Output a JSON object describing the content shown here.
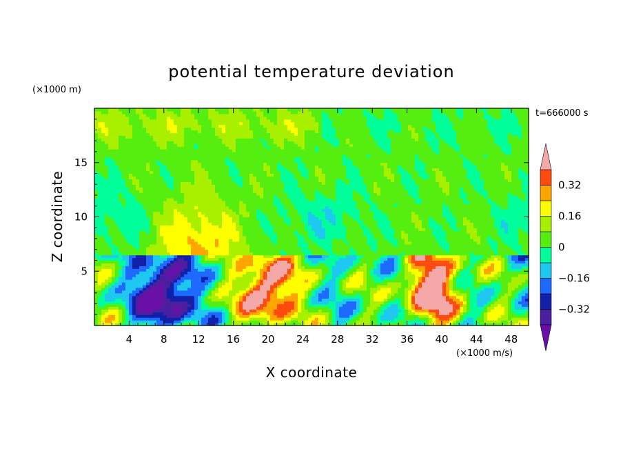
{
  "chart_data": {
    "type": "heatmap",
    "title": "potential temperature deviation",
    "xlabel": "X coordinate",
    "ylabel": "Z coordinate",
    "x_unit_label": "(×1000 m/s)",
    "y_unit_label": "(×1000 m)",
    "time_label": "t=666000 s",
    "xlim": [
      0,
      50
    ],
    "ylim": [
      0,
      20
    ],
    "x_ticks": [
      4,
      8,
      12,
      16,
      20,
      24,
      28,
      32,
      36,
      40,
      44,
      48
    ],
    "y_ticks": [
      5,
      10,
      15
    ],
    "colorbar": {
      "levels": [
        -0.4,
        -0.32,
        -0.24,
        -0.16,
        -0.08,
        0,
        0.08,
        0.16,
        0.24,
        0.32,
        0.4
      ],
      "tick_values": [
        0.32,
        0.16,
        0,
        -0.16,
        -0.32
      ],
      "tick_labels": [
        "0.32",
        "0.16",
        "0",
        "−0.16",
        "−0.32"
      ],
      "colors": [
        "#6a0fa8",
        "#4b1fa0",
        "#1020a8",
        "#1e6aff",
        "#1ec8f0",
        "#00ff9a",
        "#55ee10",
        "#a8f000",
        "#ffff00",
        "#ffa500",
        "#ff4a10",
        "#ff2020",
        "#f5a8a8"
      ],
      "extend": "both"
    },
    "features": [
      {
        "name": "upper-layer",
        "z_range": [
          6.4,
          20
        ],
        "value_range": [
          -0.16,
          0.24
        ]
      },
      {
        "name": "lower-layer",
        "z_range": [
          0,
          6.4
        ],
        "value_range": [
          -0.4,
          0.4
        ]
      },
      {
        "name": "warm-plume",
        "x": 12,
        "z_range": [
          6.4,
          13
        ],
        "peak": 0.24
      },
      {
        "name": "strong-warm-anomaly",
        "x": 20,
        "z_range": [
          0.5,
          6.4
        ],
        "peak": 0.4
      },
      {
        "name": "strong-warm-anomaly",
        "x": 39,
        "z_range": [
          0.5,
          6.4
        ],
        "peak": 0.4
      },
      {
        "name": "cold-anomaly",
        "x": 8,
        "z_range": [
          0.5,
          5.5
        ],
        "peak": -0.4
      }
    ]
  }
}
